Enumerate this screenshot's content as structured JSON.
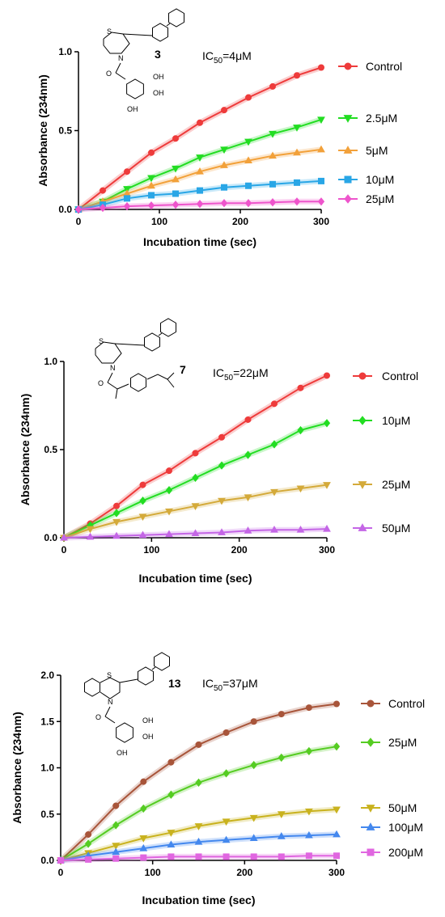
{
  "chart_data": [
    {
      "type": "line",
      "compound": "3",
      "ic50": {
        "prefix": "IC",
        "sub": "50",
        "value": "=4μM"
      },
      "xlabel": "Incubation time (sec)",
      "ylabel": "Absorbance (234nm)",
      "xlim": [
        0,
        300
      ],
      "ylim": [
        0,
        1.0
      ],
      "xticks": [
        "0",
        "100",
        "200",
        "300"
      ],
      "yticks": [
        "0.0",
        "0.5",
        "1.0"
      ],
      "x": [
        0,
        30,
        60,
        90,
        120,
        150,
        180,
        210,
        240,
        270,
        300
      ],
      "legend": "right",
      "series": [
        {
          "name": "Control",
          "color": "#ee3b3b",
          "marker": "circle",
          "values": [
            0,
            0.12,
            0.24,
            0.36,
            0.45,
            0.55,
            0.63,
            0.71,
            0.78,
            0.85,
            0.9
          ]
        },
        {
          "name": "2.5μM",
          "color": "#22dd22",
          "marker": "triangle-down",
          "values": [
            0,
            0.05,
            0.13,
            0.2,
            0.26,
            0.33,
            0.38,
            0.43,
            0.48,
            0.52,
            0.57
          ]
        },
        {
          "name": "5μM",
          "color": "#f2a13a",
          "marker": "triangle-up",
          "values": [
            0,
            0.05,
            0.1,
            0.15,
            0.19,
            0.24,
            0.28,
            0.31,
            0.34,
            0.36,
            0.38
          ]
        },
        {
          "name": "10μM",
          "color": "#29a6e6",
          "marker": "square",
          "values": [
            0,
            0.03,
            0.07,
            0.09,
            0.1,
            0.12,
            0.14,
            0.15,
            0.16,
            0.17,
            0.18
          ]
        },
        {
          "name": "25μM",
          "color": "#ee55cc",
          "marker": "diamond",
          "values": [
            0,
            0.01,
            0.02,
            0.025,
            0.03,
            0.035,
            0.04,
            0.04,
            0.045,
            0.05,
            0.05
          ]
        }
      ]
    },
    {
      "type": "line",
      "compound": "7",
      "ic50": {
        "prefix": "IC",
        "sub": "50",
        "value": "=22μM"
      },
      "xlabel": "Incubation time (sec)",
      "ylabel": "Absorbance (234nm)",
      "xlim": [
        0,
        300
      ],
      "ylim": [
        0,
        1.0
      ],
      "xticks": [
        "0",
        "100",
        "200",
        "300"
      ],
      "yticks": [
        "0.0",
        "0.5",
        "1.0"
      ],
      "x": [
        0,
        30,
        60,
        90,
        120,
        150,
        180,
        210,
        240,
        270,
        300
      ],
      "legend": "right",
      "series": [
        {
          "name": "Control",
          "color": "#ee3b3b",
          "marker": "circle",
          "values": [
            0,
            0.08,
            0.18,
            0.3,
            0.38,
            0.48,
            0.57,
            0.67,
            0.76,
            0.85,
            0.92
          ]
        },
        {
          "name": "10μM",
          "color": "#22dd22",
          "marker": "diamond",
          "values": [
            0,
            0.07,
            0.14,
            0.21,
            0.27,
            0.34,
            0.41,
            0.47,
            0.53,
            0.61,
            0.65
          ]
        },
        {
          "name": "25μM",
          "color": "#d4aa3a",
          "marker": "triangle-down",
          "values": [
            0,
            0.05,
            0.09,
            0.12,
            0.15,
            0.18,
            0.21,
            0.23,
            0.26,
            0.28,
            0.3
          ]
        },
        {
          "name": "50μM",
          "color": "#c466e6",
          "marker": "triangle-up",
          "values": [
            0,
            0.005,
            0.01,
            0.015,
            0.02,
            0.025,
            0.03,
            0.04,
            0.045,
            0.045,
            0.05
          ]
        }
      ]
    },
    {
      "type": "line",
      "compound": "13",
      "ic50": {
        "prefix": "IC",
        "sub": "50",
        "value": "=37μM"
      },
      "xlabel": "Incubation time (sec)",
      "ylabel": "Absorbance (234nm)",
      "xlim": [
        0,
        300
      ],
      "ylim": [
        0,
        2.0
      ],
      "xticks": [
        "0",
        "100",
        "200",
        "300"
      ],
      "yticks": [
        "0.0",
        "0.5",
        "1.0",
        "1.5",
        "2.0"
      ],
      "x": [
        0,
        30,
        60,
        90,
        120,
        150,
        180,
        210,
        240,
        270,
        300
      ],
      "legend": "right",
      "series": [
        {
          "name": "Control",
          "color": "#a8553a",
          "marker": "circle",
          "values": [
            0,
            0.28,
            0.59,
            0.85,
            1.06,
            1.25,
            1.38,
            1.5,
            1.58,
            1.65,
            1.69
          ]
        },
        {
          "name": "25μM",
          "color": "#55cc22",
          "marker": "diamond",
          "values": [
            0,
            0.18,
            0.38,
            0.56,
            0.71,
            0.84,
            0.94,
            1.03,
            1.11,
            1.18,
            1.23
          ]
        },
        {
          "name": "50μM",
          "color": "#c9b21e",
          "marker": "triangle-down",
          "values": [
            0,
            0.08,
            0.16,
            0.24,
            0.3,
            0.37,
            0.42,
            0.46,
            0.5,
            0.53,
            0.55
          ]
        },
        {
          "name": "100μM",
          "color": "#4488ee",
          "marker": "triangle-up",
          "values": [
            0,
            0.05,
            0.09,
            0.13,
            0.17,
            0.2,
            0.22,
            0.24,
            0.26,
            0.27,
            0.28
          ]
        },
        {
          "name": "200μM",
          "color": "#e066e0",
          "marker": "square",
          "values": [
            0,
            0.01,
            0.02,
            0.03,
            0.04,
            0.04,
            0.04,
            0.04,
            0.04,
            0.05,
            0.05
          ]
        }
      ]
    }
  ],
  "structure_labels": {
    "s": "S",
    "n": "N",
    "o": "O",
    "oh": "OH"
  }
}
